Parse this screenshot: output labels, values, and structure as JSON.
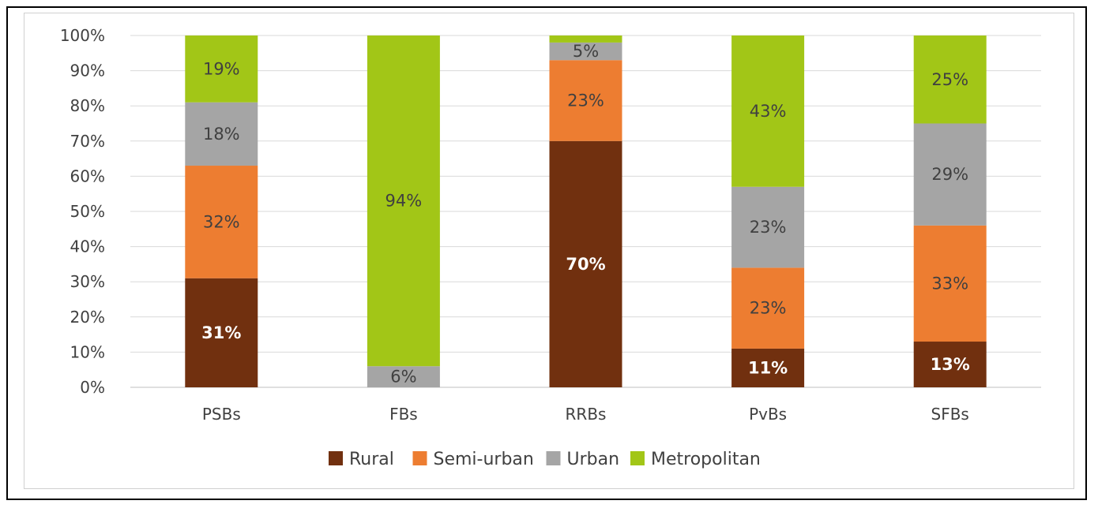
{
  "chart_data": {
    "type": "bar",
    "stacked": true,
    "percent_stacked": true,
    "categories": [
      "PSBs",
      "FBs",
      "RRBs",
      "PvBs",
      "SFBs"
    ],
    "series": [
      {
        "name": "Rural",
        "color": "#71300f",
        "values": [
          31,
          0,
          70,
          11,
          13
        ],
        "labels": [
          "31%",
          "",
          "70%",
          "11%",
          "13%"
        ],
        "label_color": "#ffffff"
      },
      {
        "name": "Semi-urban",
        "color": "#ed7d31",
        "values": [
          32,
          0,
          23,
          23,
          33
        ],
        "labels": [
          "32%",
          "",
          "23%",
          "23%",
          "33%"
        ],
        "label_color": "#404040"
      },
      {
        "name": "Urban",
        "color": "#a5a5a5",
        "values": [
          18,
          6,
          5,
          23,
          29
        ],
        "labels": [
          "18%",
          "6%",
          "5%",
          "23%",
          "29%"
        ],
        "label_color": "#404040"
      },
      {
        "name": "Metropolitan",
        "color": "#a2c617",
        "values": [
          19,
          94,
          2,
          43,
          25
        ],
        "labels": [
          "19%",
          "94%",
          "",
          "43%",
          "25%"
        ],
        "label_color": "#404040"
      }
    ],
    "y_ticks": [
      "0%",
      "10%",
      "20%",
      "30%",
      "40%",
      "50%",
      "60%",
      "70%",
      "80%",
      "90%",
      "100%"
    ],
    "ylim": [
      0,
      100
    ],
    "grid": true,
    "legend_position": "bottom"
  }
}
